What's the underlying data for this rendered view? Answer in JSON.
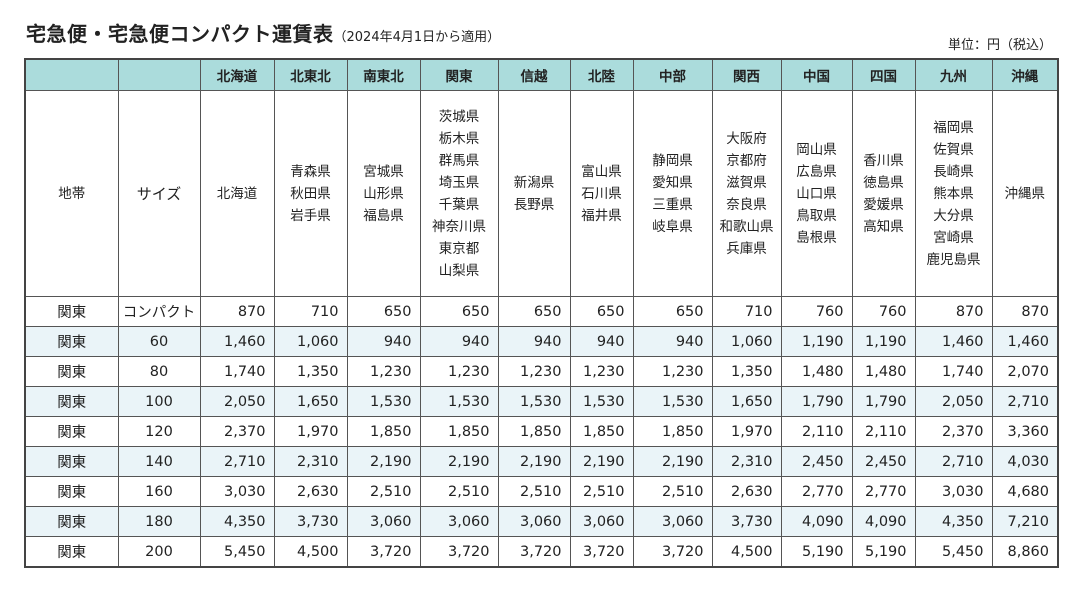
{
  "title": "宅急便・宅急便コンパクト運賃表",
  "subtitle": "（2024年4月1日から適用）",
  "unit": "単位：円（税込）",
  "header": {
    "zone": "地帯",
    "size": "サイズ"
  },
  "regions": [
    "北海道",
    "北東北",
    "南東北",
    "関東",
    "信越",
    "北陸",
    "中部",
    "関西",
    "中国",
    "四国",
    "九州",
    "沖縄"
  ],
  "prefectures": [
    [
      "北海道"
    ],
    [
      "青森県",
      "秋田県",
      "岩手県"
    ],
    [
      "宮城県",
      "山形県",
      "福島県"
    ],
    [
      "茨城県",
      "栃木県",
      "群馬県",
      "埼玉県",
      "千葉県",
      "神奈川県",
      "東京都",
      "山梨県"
    ],
    [
      "新潟県",
      "長野県"
    ],
    [
      "富山県",
      "石川県",
      "福井県"
    ],
    [
      "静岡県",
      "愛知県",
      "三重県",
      "岐阜県"
    ],
    [
      "大阪府",
      "京都府",
      "滋賀県",
      "奈良県",
      "和歌山県",
      "兵庫県"
    ],
    [
      "岡山県",
      "広島県",
      "山口県",
      "鳥取県",
      "島根県"
    ],
    [
      "香川県",
      "徳島県",
      "愛媛県",
      "高知県"
    ],
    [
      "福岡県",
      "佐賀県",
      "長崎県",
      "熊本県",
      "大分県",
      "宮崎県",
      "鹿児島県"
    ],
    [
      "沖縄県"
    ]
  ],
  "rows": [
    {
      "zone": "関東",
      "size": "コンパクト",
      "prices": [
        "870",
        "710",
        "650",
        "650",
        "650",
        "650",
        "650",
        "710",
        "760",
        "760",
        "870",
        "870"
      ]
    },
    {
      "zone": "関東",
      "size": "60",
      "prices": [
        "1,460",
        "1,060",
        "940",
        "940",
        "940",
        "940",
        "940",
        "1,060",
        "1,190",
        "1,190",
        "1,460",
        "1,460"
      ]
    },
    {
      "zone": "関東",
      "size": "80",
      "prices": [
        "1,740",
        "1,350",
        "1,230",
        "1,230",
        "1,230",
        "1,230",
        "1,230",
        "1,350",
        "1,480",
        "1,480",
        "1,740",
        "2,070"
      ]
    },
    {
      "zone": "関東",
      "size": "100",
      "prices": [
        "2,050",
        "1,650",
        "1,530",
        "1,530",
        "1,530",
        "1,530",
        "1,530",
        "1,650",
        "1,790",
        "1,790",
        "2,050",
        "2,710"
      ]
    },
    {
      "zone": "関東",
      "size": "120",
      "prices": [
        "2,370",
        "1,970",
        "1,850",
        "1,850",
        "1,850",
        "1,850",
        "1,850",
        "1,970",
        "2,110",
        "2,110",
        "2,370",
        "3,360"
      ]
    },
    {
      "zone": "関東",
      "size": "140",
      "prices": [
        "2,710",
        "2,310",
        "2,190",
        "2,190",
        "2,190",
        "2,190",
        "2,190",
        "2,310",
        "2,450",
        "2,450",
        "2,710",
        "4,030"
      ]
    },
    {
      "zone": "関東",
      "size": "160",
      "prices": [
        "3,030",
        "2,630",
        "2,510",
        "2,510",
        "2,510",
        "2,510",
        "2,510",
        "2,630",
        "2,770",
        "2,770",
        "3,030",
        "4,680"
      ]
    },
    {
      "zone": "関東",
      "size": "180",
      "prices": [
        "4,350",
        "3,730",
        "3,060",
        "3,060",
        "3,060",
        "3,060",
        "3,060",
        "3,730",
        "4,090",
        "4,090",
        "4,350",
        "7,210"
      ]
    },
    {
      "zone": "関東",
      "size": "200",
      "prices": [
        "5,450",
        "4,500",
        "3,720",
        "3,720",
        "3,720",
        "3,720",
        "3,720",
        "4,500",
        "5,190",
        "5,190",
        "5,450",
        "8,860"
      ]
    }
  ],
  "colors": {
    "header_bg": "#abdcdc",
    "alt_row_bg": "#eaf4f8"
  }
}
